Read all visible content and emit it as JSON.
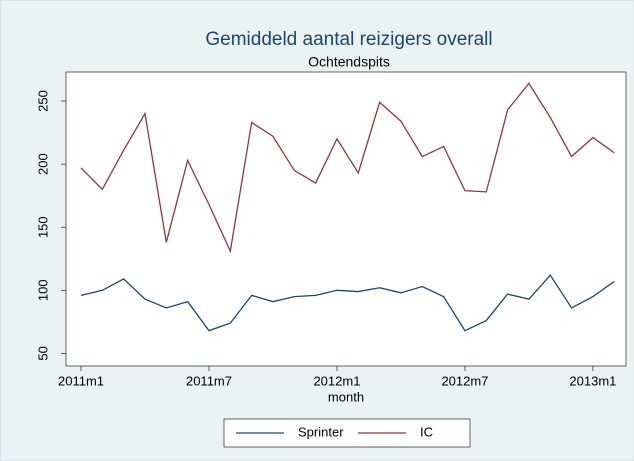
{
  "chart_data": {
    "type": "line",
    "title": "Gemiddeld aantal reizigers overall",
    "subtitle": "Ochtendspits",
    "x_label": "month",
    "categories": [
      "2011m1",
      null,
      null,
      null,
      null,
      null,
      "2011m7",
      null,
      null,
      null,
      null,
      null,
      "2012m1",
      null,
      null,
      null,
      null,
      null,
      "2012m7",
      null,
      null,
      null,
      null,
      null,
      "2013m1",
      null
    ],
    "series": [
      {
        "name": "Sprinter",
        "color": "#1a476f",
        "values": [
          96,
          100,
          109,
          93,
          86,
          91,
          68,
          74,
          96,
          91,
          95,
          96,
          100,
          99,
          102,
          98,
          103,
          95,
          68,
          76,
          97,
          93,
          112,
          86,
          95,
          107
        ]
      },
      {
        "name": "IC",
        "color": "#90353b",
        "values": [
          197,
          180,
          211,
          240,
          138,
          203,
          168,
          131,
          233,
          222,
          195,
          185,
          220,
          193,
          249,
          234,
          206,
          214,
          179,
          178,
          243,
          264,
          237,
          206,
          221,
          209
        ]
      }
    ],
    "ylim": [
      40,
      273
    ],
    "yticks": [
      50,
      100,
      150,
      200,
      250
    ],
    "grid": false,
    "legend": "bottom"
  }
}
